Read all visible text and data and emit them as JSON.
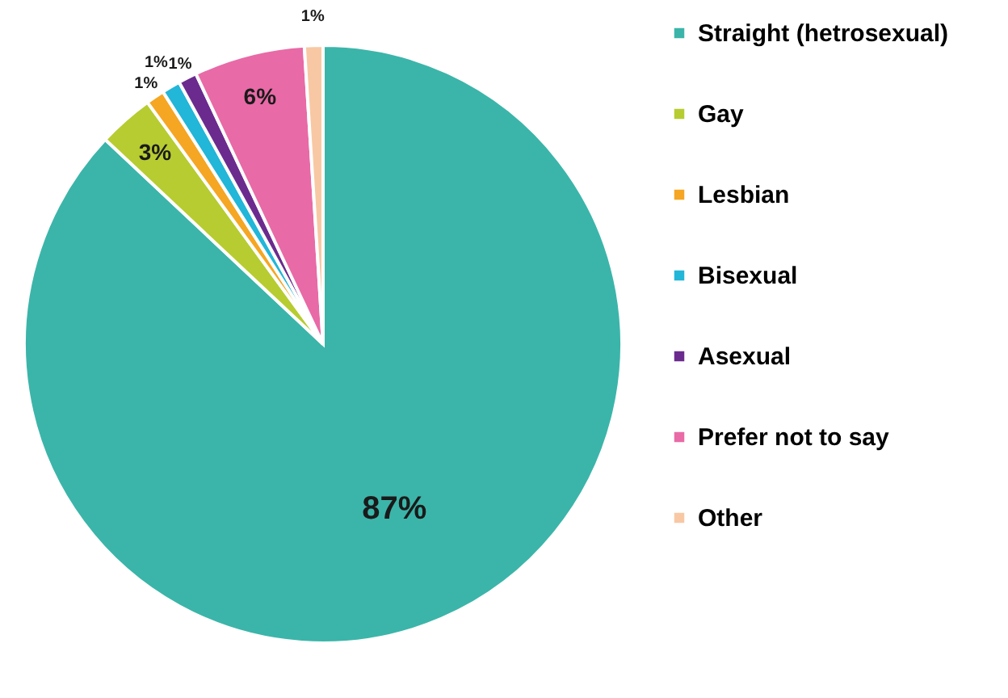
{
  "chart_data": {
    "type": "pie",
    "categories": [
      "Straight (hetrosexual)",
      "Gay",
      "Lesbian",
      "Bisexual",
      "Asexual",
      "Prefer not to say",
      "Other"
    ],
    "values": [
      87,
      3,
      1,
      1,
      1,
      6,
      1
    ],
    "colors": [
      "#3bb5a9",
      "#b7cc30",
      "#f5a623",
      "#22b6d8",
      "#6b2b8e",
      "#e86aa6",
      "#f8c8a4"
    ],
    "value_labels": [
      "87%",
      "3%",
      "1%",
      "1%",
      "1%",
      "6%",
      "1%"
    ],
    "legend": "right"
  }
}
